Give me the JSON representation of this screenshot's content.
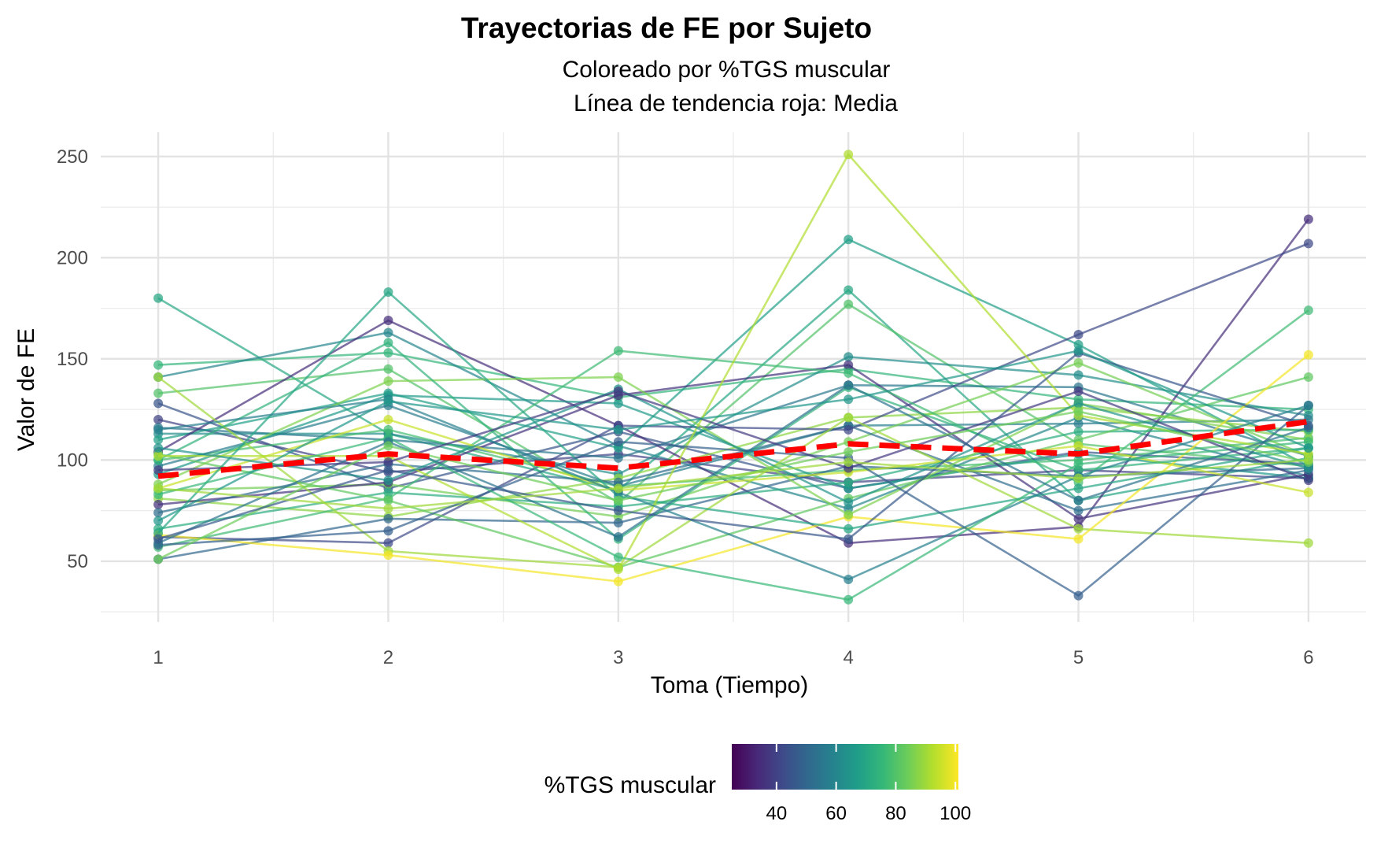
{
  "chart_data": {
    "type": "line",
    "title": "Trayectorias de FE por Sujeto",
    "subtitle_lines": [
      "Coloreado por %TGS muscular",
      "Línea de tendencia roja: Media"
    ],
    "xlabel": "Toma (Tiempo)",
    "ylabel": "Valor de FE",
    "x_ticks": [
      1,
      2,
      3,
      4,
      5,
      6
    ],
    "y_ticks": [
      50,
      100,
      150,
      200,
      250
    ],
    "xlim": [
      0.75,
      6.25
    ],
    "ylim": [
      20,
      262
    ],
    "grid": true,
    "legend": {
      "title": "%TGS muscular",
      "placement": "bottom",
      "scale": "viridis",
      "range": [
        25,
        101
      ],
      "ticks": [
        40,
        60,
        80,
        100
      ],
      "colors": [
        "#440154",
        "#482878",
        "#3E4A89",
        "#31688E",
        "#26828E",
        "#1F9E89",
        "#35B779",
        "#6DCD59",
        "#B4DE2C",
        "#FDE725"
      ]
    },
    "mean_line": {
      "color": "#FF0000",
      "style": "dashed",
      "x": [
        1,
        2,
        3,
        4,
        5,
        6
      ],
      "y": [
        92,
        103,
        96,
        108,
        103,
        119
      ]
    },
    "series": [
      {
        "tgs": 70,
        "y": [
          180,
          113,
          85,
          184,
          80,
          101
        ]
      },
      {
        "tgs": 75,
        "y": [
          147,
          153,
          131,
          145,
          130,
          125
        ]
      },
      {
        "tgs": 60,
        "y": [
          141,
          163,
          107,
          76,
          121,
          92
        ]
      },
      {
        "tgs": 80,
        "y": [
          133,
          145,
          79,
          177,
          108,
          97
        ]
      },
      {
        "tgs": 45,
        "y": [
          128,
          86,
          114,
          86,
          104,
          98
        ]
      },
      {
        "tgs": 40,
        "y": [
          120,
          94,
          103,
          89,
          95,
          91
        ]
      },
      {
        "tgs": 55,
        "y": [
          116,
          110,
          101,
          137,
          136,
          102
        ]
      },
      {
        "tgs": 62,
        "y": [
          113,
          113,
          93,
          151,
          142,
          122
        ]
      },
      {
        "tgs": 68,
        "y": [
          110,
          133,
          106,
          209,
          157,
          97
        ]
      },
      {
        "tgs": 35,
        "y": [
          104,
          169,
          117,
          59,
          67,
          219
        ]
      },
      {
        "tgs": 78,
        "y": [
          100,
          115,
          87,
          95,
          100,
          111
        ]
      },
      {
        "tgs": 57,
        "y": [
          97,
          127,
          87,
          117,
          118,
          120
        ]
      },
      {
        "tgs": 66,
        "y": [
          93,
          132,
          128,
          86,
          103,
          91
        ]
      },
      {
        "tgs": 85,
        "y": [
          85,
          88,
          72,
          109,
          148,
          102
        ]
      },
      {
        "tgs": 88,
        "y": [
          81,
          72,
          91,
          121,
          126,
          114
        ]
      },
      {
        "tgs": 36,
        "y": [
          78,
          89,
          132,
          147,
          71,
          93
        ]
      },
      {
        "tgs": 52,
        "y": [
          74,
          98,
          89,
          117,
          75,
          95
        ]
      },
      {
        "tgs": 72,
        "y": [
          66,
          84,
          77,
          89,
          114,
          115
        ]
      },
      {
        "tgs": 42,
        "y": [
          62,
          59,
          117,
          115,
          162,
          207
        ]
      },
      {
        "tgs": 77,
        "y": [
          57,
          81,
          154,
          143,
          89,
          174
        ]
      },
      {
        "tgs": 50,
        "y": [
          51,
          71,
          69,
          97,
          92,
          96
        ]
      },
      {
        "tgs": 82,
        "y": [
          103,
          80,
          47,
          81,
          110,
          141
        ]
      },
      {
        "tgs": 90,
        "y": [
          141,
          55,
          47,
          121,
          66,
          59
        ]
      },
      {
        "tgs": 95,
        "y": [
          86,
          120,
          85,
          94,
          107,
          84
        ]
      },
      {
        "tgs": 100,
        "y": [
          63,
          53,
          40,
          72,
          61,
          152
        ]
      },
      {
        "tgs": 86,
        "y": [
          88,
          139,
          141,
          73,
          128,
          110
        ]
      },
      {
        "tgs": 74,
        "y": [
          100,
          158,
          61,
          136,
          95,
          106
        ]
      },
      {
        "tgs": 70,
        "y": [
          64,
          183,
          82,
          66,
          86,
          106
        ]
      },
      {
        "tgs": 92,
        "y": [
          102,
          102,
          46,
          251,
          122,
          103
        ]
      },
      {
        "tgs": 64,
        "y": [
          106,
          90,
          135,
          79,
          128,
          96
        ]
      },
      {
        "tgs": 48,
        "y": [
          58,
          65,
          109,
          101,
          33,
          127
        ]
      },
      {
        "tgs": 58,
        "y": [
          115,
          130,
          84,
          41,
          92,
          127
        ]
      },
      {
        "tgs": 76,
        "y": [
          83,
          111,
          52,
          31,
          98,
          109
        ]
      },
      {
        "tgs": 54,
        "y": [
          59,
          109,
          62,
          137,
          80,
          116
        ]
      },
      {
        "tgs": 38,
        "y": [
          95,
          99,
          134,
          96,
          134,
          90
        ]
      },
      {
        "tgs": 84,
        "y": [
          51,
          107,
          80,
          104,
          124,
          99
        ]
      },
      {
        "tgs": 46,
        "y": [
          61,
          95,
          75,
          61,
          153,
          117
        ]
      },
      {
        "tgs": 90,
        "y": [
          86,
          76,
          86,
          99,
          91,
          100
        ]
      },
      {
        "tgs": 65,
        "y": [
          70,
          129,
          115,
          130,
          154,
          106
        ]
      }
    ]
  }
}
